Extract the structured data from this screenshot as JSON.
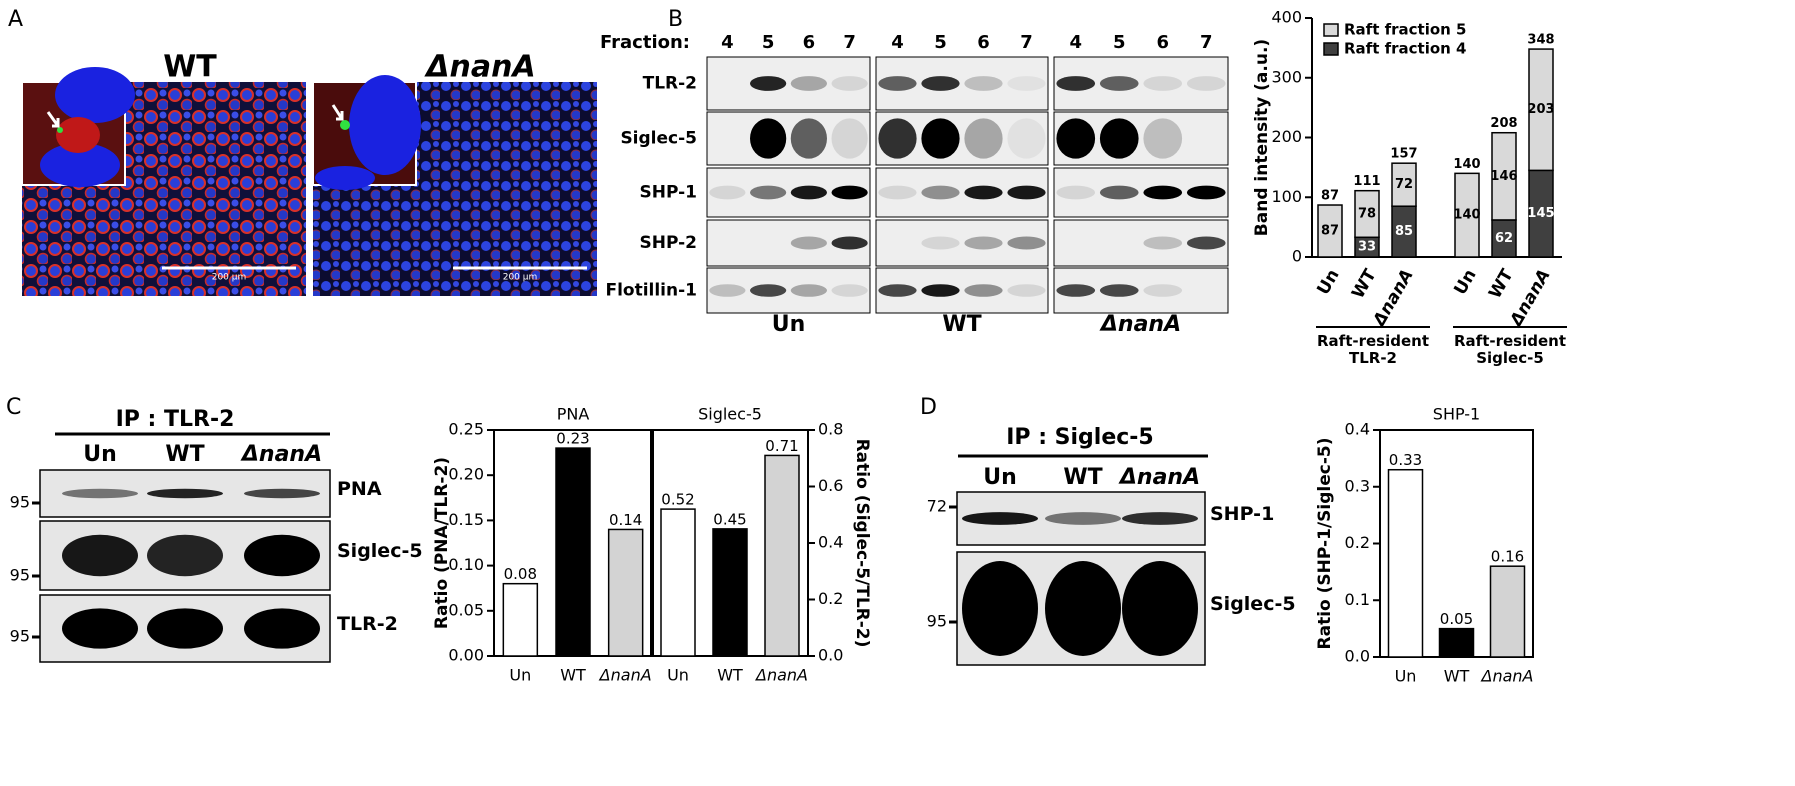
{
  "panel_labels": [
    "A",
    "B",
    "C",
    "D"
  ],
  "panel_a": {
    "images": [
      {
        "title": "WT",
        "scale_bar": "200 µm"
      },
      {
        "title": "ΔnanA",
        "scale_bar": "200 µm"
      }
    ]
  },
  "blot_b": {
    "header": "Fraction:",
    "rows": [
      "TLR-2",
      "Siglec-5",
      "SHP-1",
      "SHP-2",
      "Flotillin-1"
    ],
    "groups": [
      {
        "name": "Un",
        "fractions": [
          "4",
          "5",
          "6",
          "7"
        ]
      },
      {
        "name": "WT",
        "fractions": [
          "4",
          "5",
          "6",
          "7"
        ]
      },
      {
        "name": "ΔnanA",
        "fractions": [
          "4",
          "5",
          "6",
          "7"
        ]
      }
    ]
  },
  "blot_c": {
    "title": "IP : TLR-2",
    "lanes": [
      "Un",
      "WT",
      "ΔnanA"
    ],
    "rows": [
      "PNA",
      "Siglec-5",
      "TLR-2"
    ],
    "markers": [
      "95",
      "95",
      "95"
    ]
  },
  "blot_d": {
    "title": "IP : Siglec-5",
    "lanes": [
      "Un",
      "WT",
      "ΔnanA"
    ],
    "rows": [
      "SHP-1",
      "Siglec-5"
    ],
    "markers": [
      "72",
      "95"
    ]
  },
  "chart_data": [
    {
      "type": "stacked_bar",
      "ylabel": "Band intensity (a.u.)",
      "groups": [
        {
          "label": "Raft-resident TLR-2",
          "categories": [
            "Un",
            "WT",
            "ΔnanA"
          ]
        },
        {
          "label": "Raft-resident Siglec-5",
          "categories": [
            "Un",
            "WT",
            "ΔnanA"
          ]
        }
      ],
      "series": [
        {
          "name": "Raft fraction 5",
          "color": "#d9d9d9",
          "values": [
            87,
            78,
            72,
            140,
            146,
            203
          ]
        },
        {
          "name": "Raft fraction 4",
          "color": "#404040",
          "values": [
            null,
            33,
            85,
            null,
            62,
            145
          ]
        }
      ],
      "total_labels": [
        87,
        111,
        157,
        140,
        208,
        348
      ],
      "ylim": [
        0,
        400
      ],
      "yticks": [
        0,
        100,
        200,
        300,
        400
      ],
      "legend": "upper left"
    },
    {
      "type": "dual_axis_bar",
      "ylabel": "Ratio (PNA/TLR-2)",
      "y2label": "Ratio (Siglec-5/TLR-2)",
      "sections": [
        {
          "title": "PNA",
          "axis": "y",
          "categories": [
            "Un",
            "WT",
            "ΔnanA"
          ],
          "values": [
            0.08,
            0.23,
            0.14
          ],
          "colors": [
            "#ffffff",
            "#000000",
            "#d3d3d3"
          ]
        },
        {
          "title": "Siglec-5",
          "axis": "y2",
          "categories": [
            "Un",
            "WT",
            "ΔnanA"
          ],
          "values": [
            0.52,
            0.45,
            0.71
          ],
          "colors": [
            "#ffffff",
            "#000000",
            "#d3d3d3"
          ]
        }
      ],
      "ylim": [
        0,
        0.25
      ],
      "yticks": [
        {
          "value": 0,
          "label": "0.00"
        },
        0.05,
        {
          "value": 0.1,
          "label": "0.10"
        },
        0.15,
        {
          "value": 0.2,
          "label": "0.20"
        },
        0.25
      ],
      "y2lim": [
        0,
        0.8
      ],
      "y2ticks": [
        {
          "value": 0,
          "label": "0.0"
        },
        0.2,
        0.4,
        0.6,
        0.8
      ]
    },
    {
      "type": "bar",
      "title": "SHP-1",
      "ylabel": "Ratio (SHP-1/Siglec-5)",
      "categories": [
        "Un",
        "WT",
        "ΔnanA"
      ],
      "values": [
        0.33,
        0.05,
        0.16
      ],
      "colors": [
        "#ffffff",
        "#000000",
        "#d3d3d3"
      ],
      "ylim": [
        0,
        0.4
      ],
      "yticks": [
        {
          "value": 0,
          "label": "0.0"
        },
        0.1,
        0.2,
        0.3,
        0.4
      ]
    }
  ]
}
